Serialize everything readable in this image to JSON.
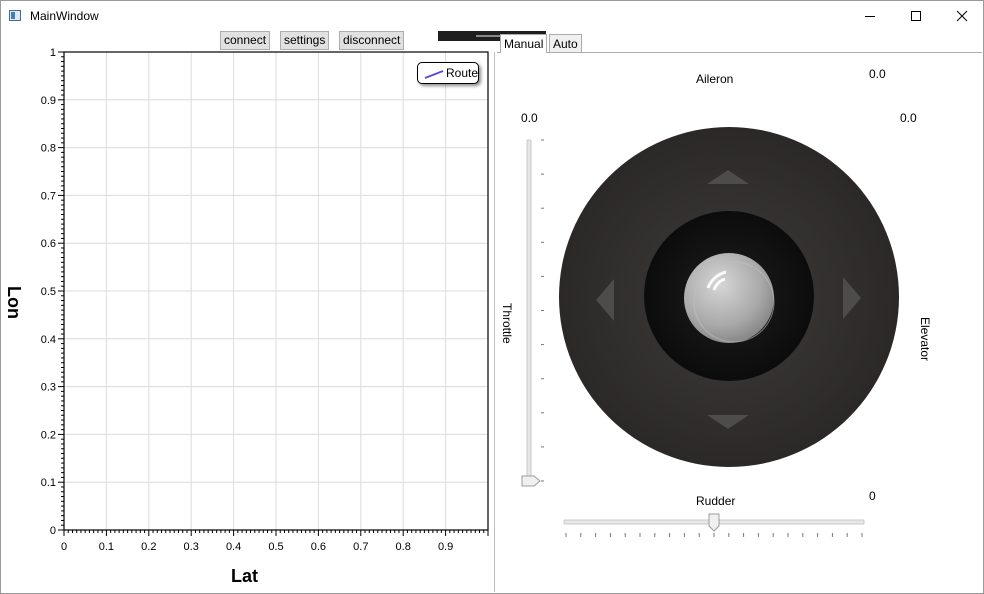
{
  "window": {
    "title": "MainWindow"
  },
  "toolbar": {
    "connect_label": "connect",
    "settings_label": "settings",
    "disconnect_label": "disconnect"
  },
  "tabs": [
    {
      "label": "Manual",
      "selected": true
    },
    {
      "label": "Auto",
      "selected": false
    }
  ],
  "icons": {
    "app": "app-window-icon",
    "minimize": "minimize-icon",
    "maximize": "maximize-icon",
    "close": "close-icon",
    "joystick": "joystick-knob-icon"
  },
  "chart_data": {
    "type": "line",
    "title": "",
    "xlabel": "Lat",
    "ylabel": "Lon",
    "xlim": [
      0,
      1
    ],
    "ylim": [
      0,
      1
    ],
    "x_ticks": [
      "0",
      "0.1",
      "0.2",
      "0.3",
      "0.4",
      "0.5",
      "0.6",
      "0.7",
      "0.8",
      "0.9"
    ],
    "y_ticks": [
      "0",
      "0.1",
      "0.2",
      "0.3",
      "0.4",
      "0.5",
      "0.6",
      "0.7",
      "0.8",
      "0.9",
      "1"
    ],
    "grid": true,
    "legend_position": "top-right",
    "series": [
      {
        "name": "Route",
        "color": "#5a4bd6",
        "x": [],
        "y": []
      }
    ]
  },
  "manual": {
    "aileron_label": "Aileron",
    "aileron_value": "0.0",
    "elevator_label": "Elevator",
    "elevator_value": "0.0",
    "throttle_label": "Throttle",
    "throttle_value": "0.0",
    "throttle_level": 0,
    "rudder_label": "Rudder",
    "rudder_value": "0",
    "rudder_level": 0.5
  }
}
